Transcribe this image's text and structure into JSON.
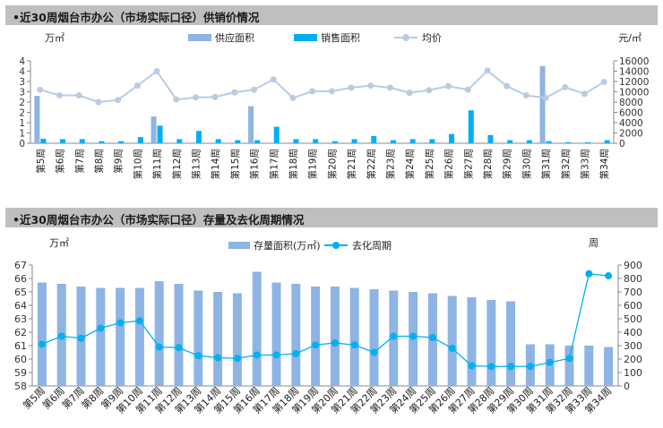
{
  "chart_data": [
    {
      "type": "bar",
      "title": "•近30周烟台市办公（市场实际口径）供销价情况",
      "y_unit_left": "万㎡",
      "y_unit_right": "元/㎡",
      "ylim_left": [
        0,
        4
      ],
      "yticks_left": [
        "0",
        "1",
        "1",
        "2",
        "2",
        "3",
        "3",
        "4",
        "4"
      ],
      "ylim_right": [
        0,
        16000
      ],
      "yticks_right": [
        "0",
        "2000",
        "4000",
        "6000",
        "8000",
        "10000",
        "12000",
        "14000",
        "16000"
      ],
      "legend_position": "top",
      "categories": [
        "第5周",
        "第6周",
        "第7周",
        "第8周",
        "第9周",
        "第10周",
        "第11周",
        "第12周",
        "第13周",
        "第14周",
        "第15周",
        "第16周",
        "第17周",
        "第18周",
        "第19周",
        "第20周",
        "第21周",
        "第22周",
        "第23周",
        "第24周",
        "第25周",
        "第26周",
        "第27周",
        "第28周",
        "第29周",
        "第30周",
        "第31周",
        "第32周",
        "第33周",
        "第34周"
      ],
      "series": [
        {
          "name": "供应面积",
          "type": "bar",
          "axis": "left",
          "color": "#8eb4e3",
          "values": [
            2.3,
            0,
            0,
            0,
            0,
            0,
            1.3,
            0,
            0,
            0,
            0,
            1.8,
            0,
            0,
            0,
            0,
            0,
            0,
            0,
            0,
            0,
            0,
            0,
            0,
            0,
            0,
            3.75,
            0,
            0,
            0
          ]
        },
        {
          "name": "销售面积",
          "type": "bar",
          "axis": "left",
          "color": "#00b0f0",
          "values": [
            0.22,
            0.2,
            0.2,
            0.1,
            0.1,
            0.3,
            0.85,
            0.2,
            0.6,
            0.2,
            0.15,
            0.15,
            0.8,
            0.2,
            0.2,
            0.1,
            0.2,
            0.35,
            0.15,
            0.2,
            0.2,
            0.45,
            1.6,
            0.4,
            0.15,
            0.15,
            0.1,
            0.05,
            0.05,
            0.15
          ]
        },
        {
          "name": "均价",
          "type": "line",
          "axis": "right",
          "color": "#b8cce4",
          "values": [
            10400,
            9300,
            9300,
            8000,
            8400,
            11200,
            14000,
            8500,
            8900,
            9000,
            9900,
            10400,
            12400,
            8800,
            10100,
            10100,
            10800,
            11200,
            10800,
            9800,
            10300,
            11100,
            10400,
            14100,
            11100,
            9300,
            8800,
            10900,
            9600,
            11900
          ]
        }
      ]
    },
    {
      "type": "bar",
      "title": "•近30周烟台市办公（市场实际口径）存量及去化周期情况",
      "y_unit_left": "万㎡",
      "y_unit_right": "周",
      "ylim_left": [
        58,
        67
      ],
      "ylim_right": [
        0,
        900
      ],
      "legend_position": "top",
      "categories": [
        "第5周",
        "第6周",
        "第7周",
        "第8周",
        "第9周",
        "第10周",
        "第11周",
        "第12周",
        "第13周",
        "第14周",
        "第15周",
        "第16周",
        "第17周",
        "第18周",
        "第19周",
        "第20周",
        "第21周",
        "第22周",
        "第23周",
        "第24周",
        "第25周",
        "第26周",
        "第27周",
        "第28周",
        "第29周",
        "第30周",
        "第31周",
        "第32周",
        "第33周",
        "第34周"
      ],
      "series": [
        {
          "name": "存量面积(万㎡)",
          "type": "bar",
          "axis": "left",
          "color": "#8eb4e3",
          "values": [
            65.7,
            65.6,
            65.4,
            65.3,
            65.3,
            65.3,
            65.8,
            65.6,
            65.1,
            65.0,
            64.9,
            66.5,
            65.7,
            65.6,
            65.4,
            65.4,
            65.3,
            65.2,
            65.1,
            65.0,
            64.9,
            64.7,
            64.6,
            64.4,
            64.3,
            61.1,
            61.1,
            61.0,
            61.0,
            60.9
          ]
        },
        {
          "name": "去化周期",
          "type": "line",
          "axis": "right",
          "color": "#00b0f0",
          "values": [
            310,
            370,
            355,
            430,
            470,
            485,
            290,
            285,
            225,
            210,
            205,
            230,
            230,
            240,
            305,
            320,
            305,
            250,
            370,
            370,
            360,
            280,
            150,
            145,
            145,
            145,
            175,
            205,
            835,
            820
          ]
        }
      ]
    }
  ]
}
